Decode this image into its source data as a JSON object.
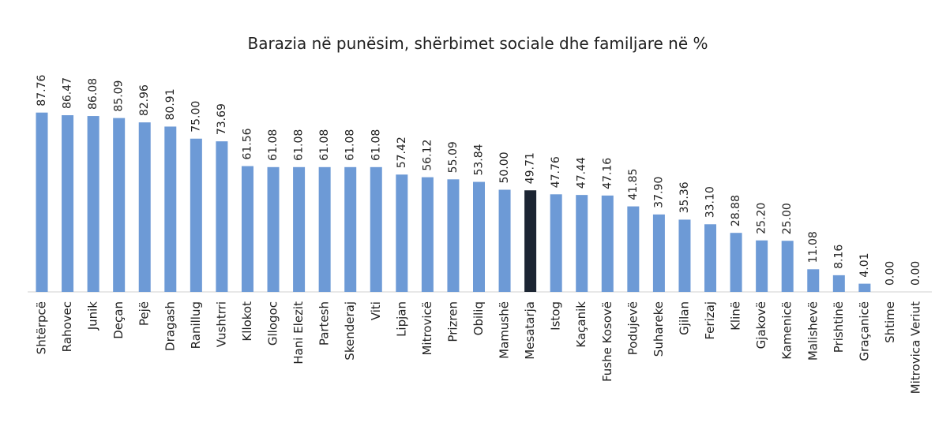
{
  "chart_data": {
    "type": "bar",
    "title": "Barazia në punësim, shërbimet sociale dhe familjare në %",
    "categories": [
      "Shtërpcë",
      "Rahovec",
      "Junik",
      "Deçan",
      "Pejë",
      "Dragash",
      "Ranillug",
      "Vushtrri",
      "Kllokot",
      "Gllogoc",
      "Hani Elezit",
      "Partesh",
      "Skenderaj",
      "Viti",
      "Lipjan",
      "Mitrovicë",
      "Prizren",
      "Obiliq",
      "Mamushë",
      "Mesatarja",
      "Istog",
      "Kaçanik",
      "Fushe Kosovë",
      "Podujevë",
      "Suhareke",
      "Gjilan",
      "Ferizaj",
      "Klinë",
      "Gjakovë",
      "Kamenicë",
      "Malishevë",
      "Prishtinë",
      "Graçanicë",
      "Shtime",
      "Mitrovica Veriut"
    ],
    "values": [
      87.76,
      86.47,
      86.08,
      85.09,
      82.96,
      80.91,
      75,
      73.69,
      61.56,
      61.08,
      61.08,
      61.08,
      61.08,
      61.08,
      57.42,
      56.12,
      55.09,
      53.84,
      50,
      49.71,
      47.76,
      47.44,
      47.16,
      41.85,
      37.9,
      35.36,
      33.1,
      28.88,
      25.2,
      25,
      11.08,
      8.16,
      4.01,
      0,
      0
    ],
    "value_labels": [
      "87.76",
      "86.47",
      "86.08",
      "85.09",
      "82.96",
      "80.91",
      "75.00",
      "73.69",
      "61.56",
      "61.08",
      "61.08",
      "61.08",
      "61.08",
      "61.08",
      "57.42",
      "56.12",
      "55.09",
      "53.84",
      "50.00",
      "49.71",
      "47.76",
      "47.44",
      "47.16",
      "41.85",
      "37.90",
      "35.36",
      "33.10",
      "28.88",
      "25.20",
      "25.00",
      "11.08",
      "8.16",
      "4.01",
      "0.00",
      "0.00"
    ],
    "colors": [
      "#6d9ad6",
      "#6d9ad6",
      "#6d9ad6",
      "#6d9ad6",
      "#6d9ad6",
      "#6d9ad6",
      "#6d9ad6",
      "#6d9ad6",
      "#6d9ad6",
      "#6d9ad6",
      "#6d9ad6",
      "#6d9ad6",
      "#6d9ad6",
      "#6d9ad6",
      "#6d9ad6",
      "#6d9ad6",
      "#6d9ad6",
      "#6d9ad6",
      "#6d9ad6",
      "#1c2533",
      "#6d9ad6",
      "#6d9ad6",
      "#6d9ad6",
      "#6d9ad6",
      "#6d9ad6",
      "#6d9ad6",
      "#6d9ad6",
      "#6d9ad6",
      "#6d9ad6",
      "#6d9ad6",
      "#6d9ad6",
      "#6d9ad6",
      "#6d9ad6",
      "#6d9ad6",
      "#6d9ad6"
    ]
  }
}
